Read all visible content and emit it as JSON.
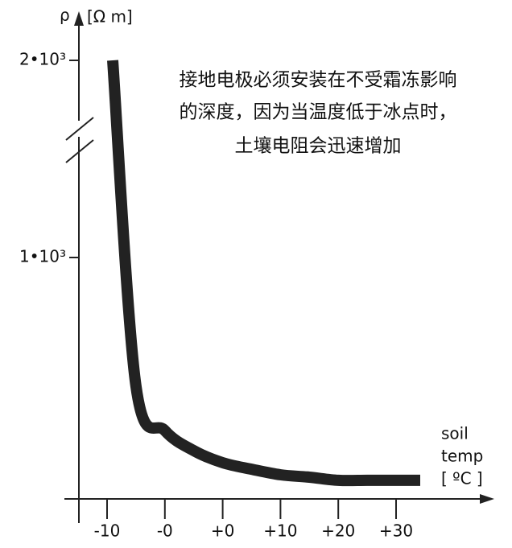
{
  "chart_data": {
    "type": "line",
    "y_symbol": "ρ",
    "y_unit": "[Ω m]",
    "x_label_lines": [
      "soil",
      "temp"
    ],
    "x_unit": "[ ºC ]",
    "annotation": [
      "接地电极必须安装在不受霜冻影响",
      "的深度，因为当温度低于冰点时，",
      "土壤电阻会迅速增加"
    ],
    "categories": [
      "-10",
      null,
      "-0",
      null,
      "+0",
      null,
      "+10",
      null,
      "+20",
      null,
      "+30"
    ],
    "series": [
      {
        "color": "#222222",
        "values": [
          2000,
          467,
          283,
          200,
          150,
          123,
          100,
          90,
          77,
          77,
          77
        ]
      }
    ],
    "ylim": [
      0,
      2000
    ],
    "yticks": [
      {
        "value": 1000,
        "label": "1•10³"
      },
      {
        "value": 2000,
        "label": "2•10³"
      }
    ],
    "y_axis_break": true
  }
}
